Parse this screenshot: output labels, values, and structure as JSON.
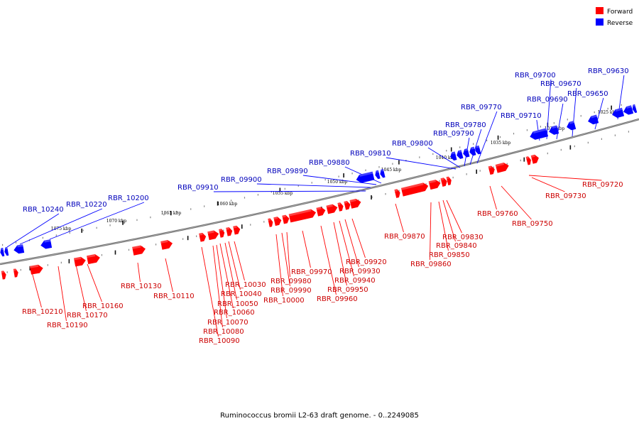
{
  "title": "Ruminococcus bromii L2-63 draft genome. - 0..2249085",
  "legend": [
    {
      "label": "Forward",
      "color": "#ff0000"
    },
    {
      "label": "Reverse",
      "color": "#0000ff"
    }
  ],
  "colors": {
    "forward": "#ff0000",
    "reverse": "#0000ff",
    "forward_label": "#cc0000",
    "reverse_label": "#0000bb"
  },
  "scale_ticks": [
    "1025 kbp",
    "1030 kbp",
    "1035 kbp",
    "1040 kbp",
    "1045 kbp",
    "1050 kbp",
    "1055 kbp",
    "1060 kbp",
    "1065 kbp",
    "1070 kbp",
    "1075 kbp"
  ],
  "forward_genes": [
    "RBR_09720",
    "RBR_09730",
    "RBR_09750",
    "RBR_09760",
    "RBR_09830",
    "RBR_09840",
    "RBR_09850",
    "RBR_09860",
    "RBR_09870",
    "RBR_09920",
    "RBR_09930",
    "RBR_09940",
    "RBR_09950",
    "RBR_09960",
    "RBR_09970",
    "RBR_09980",
    "RBR_09990",
    "RBR_10000",
    "RBR_10030",
    "RBR_10040",
    "RBR_10050",
    "RBR_10060",
    "RBR_10070",
    "RBR_10080",
    "RBR_10090",
    "RBR_10110",
    "RBR_10130",
    "RBR_10160",
    "RBR_10170",
    "RBR_10190",
    "RBR_10210"
  ],
  "reverse_genes": [
    "RBR_09630",
    "RBR_09650",
    "RBR_09670",
    "RBR_09690",
    "RBR_09700",
    "RBR_09710",
    "RBR_09770",
    "RBR_09780",
    "RBR_09790",
    "RBR_09800",
    "RBR_09810",
    "RBR_09880",
    "RBR_09890",
    "RBR_09900",
    "RBR_09910",
    "RBR_10200",
    "RBR_10220",
    "RBR_10240"
  ]
}
